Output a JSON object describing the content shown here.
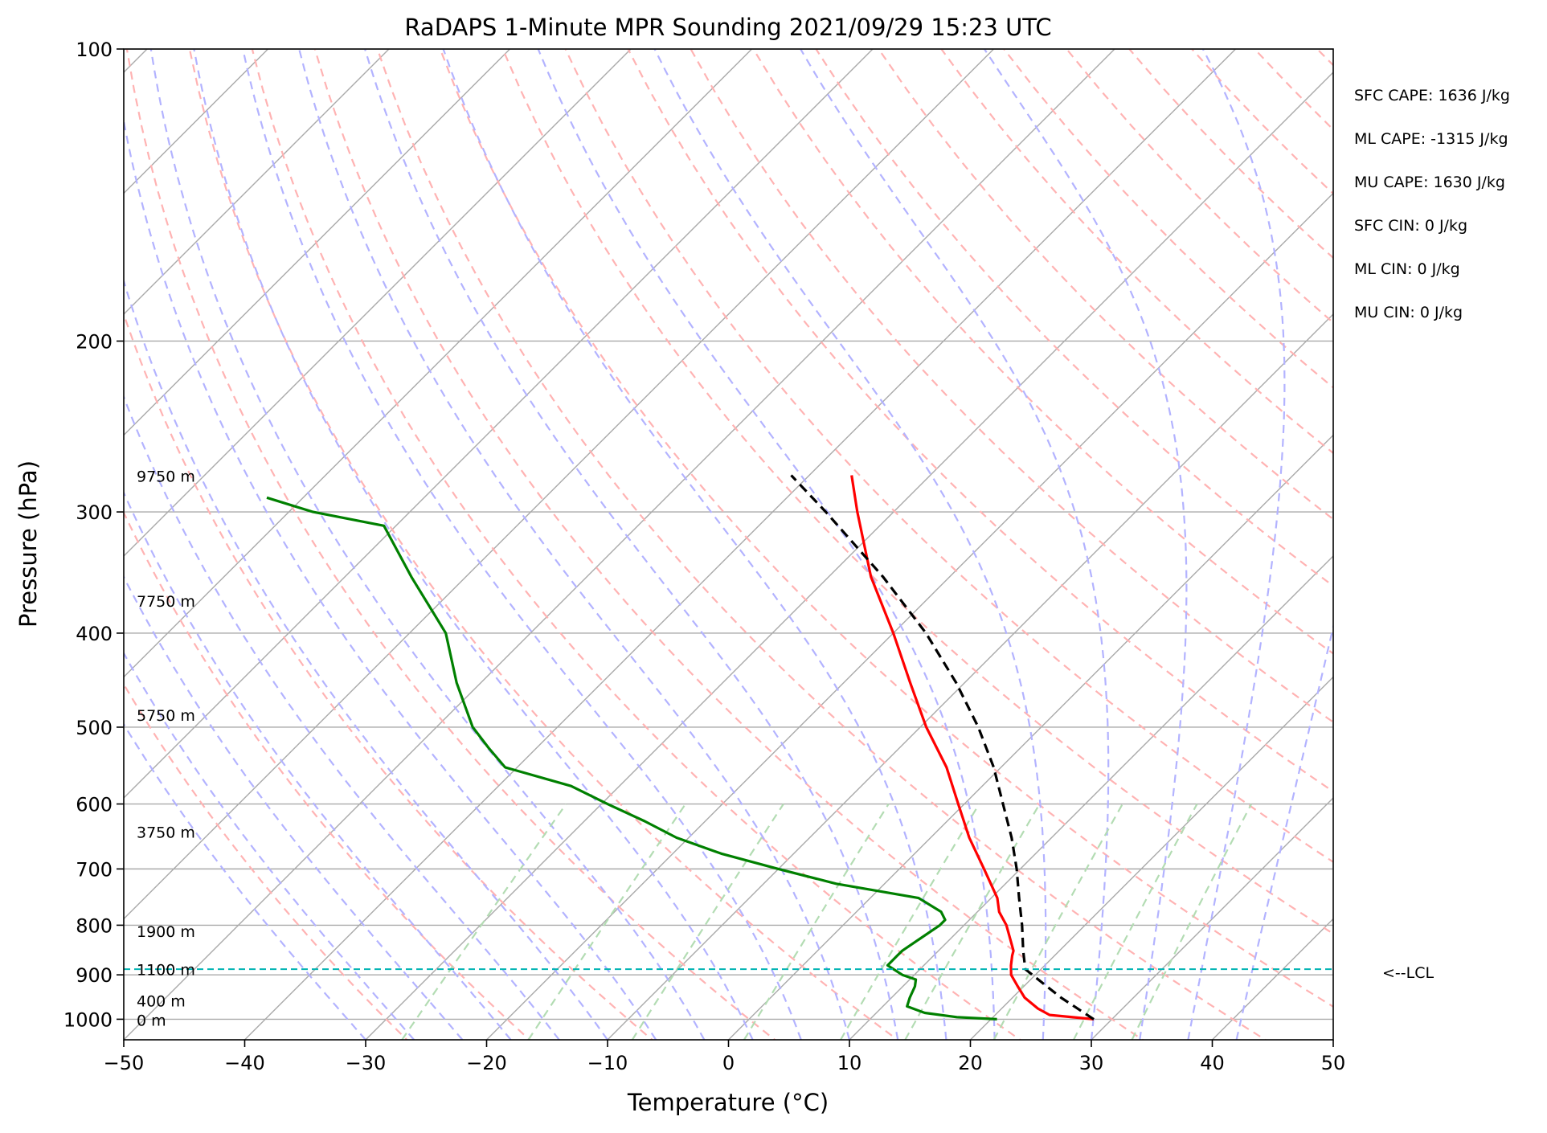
{
  "chart_data": {
    "type": "line",
    "title": "RaDAPS 1-Minute MPR Sounding 2021/09/29 15:23 UTC",
    "xlabel": "Temperature (°C)",
    "ylabel": "Pressure (hPa)",
    "xlim": [
      -50,
      50
    ],
    "ylim": [
      1050,
      100
    ],
    "y_scale": "log",
    "skew": "skew-T (isotherms tilted 45°)",
    "x_ticks": [
      -50,
      -40,
      -30,
      -20,
      -10,
      0,
      10,
      20,
      30,
      40,
      50
    ],
    "x_tick_labels": [
      "−50",
      "−40",
      "−30",
      "−20",
      "−10",
      "0",
      "10",
      "20",
      "30",
      "40",
      "50"
    ],
    "y_ticks": [
      100,
      200,
      300,
      400,
      500,
      600,
      700,
      800,
      900,
      1000
    ],
    "y_tick_labels": [
      "100",
      "200",
      "300",
      "400",
      "500",
      "600",
      "700",
      "800",
      "900",
      "1000"
    ],
    "grid": true,
    "series": [
      {
        "color": "#ff0000",
        "points": [
          [
            1000,
            28.5
          ],
          [
            990,
            24.5
          ],
          [
            975,
            23.0
          ],
          [
            950,
            21.0
          ],
          [
            925,
            19.5
          ],
          [
            900,
            18.0
          ],
          [
            880,
            17.2
          ],
          [
            860,
            16.5
          ],
          [
            850,
            16.2
          ],
          [
            800,
            13.5
          ],
          [
            775,
            11.8
          ],
          [
            750,
            10.5
          ],
          [
            700,
            7.0
          ],
          [
            650,
            3.2
          ],
          [
            600,
            -0.5
          ],
          [
            550,
            -4.5
          ],
          [
            500,
            -9.5
          ],
          [
            450,
            -14.5
          ],
          [
            400,
            -20.0
          ],
          [
            350,
            -26.5
          ],
          [
            300,
            -33.0
          ],
          [
            275,
            -36.5
          ]
        ]
      },
      {
        "color": "#008000",
        "points": [
          [
            1000,
            20.5
          ],
          [
            995,
            17.0
          ],
          [
            985,
            14.0
          ],
          [
            970,
            12.0
          ],
          [
            950,
            11.5
          ],
          [
            925,
            11.0
          ],
          [
            910,
            10.5
          ],
          [
            900,
            9.0
          ],
          [
            880,
            7.0
          ],
          [
            860,
            7.0
          ],
          [
            850,
            7.0
          ],
          [
            825,
            7.5
          ],
          [
            800,
            8.0
          ],
          [
            790,
            8.0
          ],
          [
            775,
            7.0
          ],
          [
            750,
            4.0
          ],
          [
            725,
            -4.0
          ],
          [
            700,
            -10.0
          ],
          [
            675,
            -16.0
          ],
          [
            650,
            -21.0
          ],
          [
            625,
            -25.0
          ],
          [
            600,
            -29.5
          ],
          [
            575,
            -34.0
          ],
          [
            550,
            -41.0
          ],
          [
            525,
            -44.0
          ],
          [
            500,
            -47.0
          ],
          [
            450,
            -52.0
          ],
          [
            400,
            -57.0
          ],
          [
            350,
            -64.5
          ],
          [
            310,
            -71.0
          ],
          [
            300,
            -78.0
          ],
          [
            290,
            -83.0
          ]
        ]
      },
      {
        "color": "#000000",
        "dash": "dashed",
        "points": [
          [
            1000,
            28.5
          ],
          [
            950,
            24.0
          ],
          [
            888,
            18.7
          ],
          [
            850,
            17.0
          ],
          [
            800,
            14.8
          ],
          [
            750,
            12.3
          ],
          [
            700,
            9.7
          ],
          [
            650,
            6.7
          ],
          [
            600,
            3.2
          ],
          [
            550,
            -0.6
          ],
          [
            500,
            -5.2
          ],
          [
            450,
            -10.7
          ],
          [
            400,
            -17.3
          ],
          [
            350,
            -25.5
          ],
          [
            300,
            -35.6
          ],
          [
            275,
            -41.5
          ]
        ]
      }
    ],
    "lcl_pressure": 888,
    "lcl_label": "<--LCL",
    "height_labels": [
      {
        "label": "0 m",
        "p": 1000
      },
      {
        "label": "400 m",
        "p": 955
      },
      {
        "label": "1100 m",
        "p": 887
      },
      {
        "label": "1900 m",
        "p": 810
      },
      {
        "label": "3750 m",
        "p": 640
      },
      {
        "label": "5750 m",
        "p": 485
      },
      {
        "label": "7750 m",
        "p": 370
      },
      {
        "label": "9750 m",
        "p": 275
      }
    ],
    "reference_lines": {
      "isotherm_color": "#aaaaaa",
      "dry_adiabat_color": "#ffb3b3",
      "moist_adiabat_color": "#b3b3ff",
      "mixing_ratio_color": "#b3dcb3",
      "lcl_color": "#00b3b3"
    },
    "stats": [
      "SFC CAPE: 1636 J/kg",
      "ML CAPE: -1315 J/kg",
      "MU CAPE: 1630 J/kg",
      "SFC CIN: 0 J/kg",
      "ML CIN: 0 J/kg",
      "MU CIN: 0 J/kg"
    ]
  }
}
